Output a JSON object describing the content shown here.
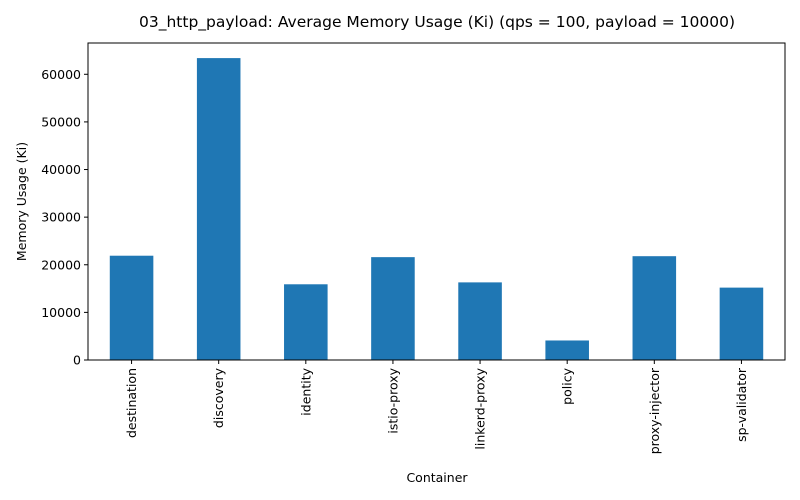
{
  "chart_data": {
    "type": "bar",
    "title": "03_http_payload: Average Memory Usage (Ki) (qps = 100, payload = 10000)",
    "xlabel": "Container",
    "ylabel": "Memory Usage (Ki)",
    "categories": [
      "destination",
      "discovery",
      "identity",
      "istio-proxy",
      "linkerd-proxy",
      "policy",
      "proxy-injector",
      "sp-validator"
    ],
    "values": [
      21900,
      63400,
      15900,
      21600,
      16300,
      4100,
      21800,
      15200
    ],
    "ylim": [
      0,
      66570
    ],
    "yticks": [
      0,
      10000,
      20000,
      30000,
      40000,
      50000,
      60000
    ],
    "ytick_labels": [
      "0",
      "10000",
      "20000",
      "30000",
      "40000",
      "50000",
      "60000"
    ],
    "grid": false,
    "legend": "none",
    "bar_color": "#1f77b4"
  }
}
